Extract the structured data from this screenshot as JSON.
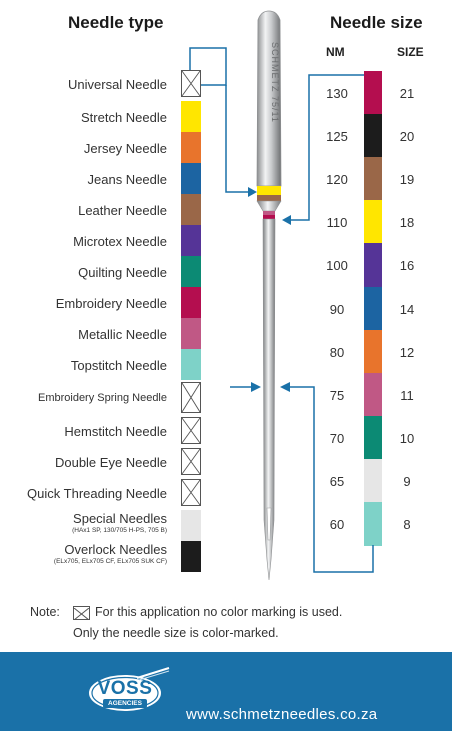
{
  "headers": {
    "needle_type": "Needle type",
    "needle_size": "Needle size",
    "nm": "NM",
    "size": "SIZE"
  },
  "needle_types": [
    {
      "label": "Universal Needle",
      "color": null
    },
    {
      "label": "Stretch Needle",
      "color": "#ffe600"
    },
    {
      "label": "Jersey Needle",
      "color": "#e8742c"
    },
    {
      "label": "Jeans Needle",
      "color": "#1c64a2"
    },
    {
      "label": "Leather Needle",
      "color": "#9a6748"
    },
    {
      "label": "Microtex Needle",
      "color": "#553497"
    },
    {
      "label": "Quilting Needle",
      "color": "#0c8a74"
    },
    {
      "label": "Embroidery Needle",
      "color": "#b40e4f"
    },
    {
      "label": "Metallic Needle",
      "color": "#c05885"
    },
    {
      "label": "Topstitch Needle",
      "color": "#7ed2c8"
    },
    {
      "label": "Embroidery Spring Needle",
      "color": null
    },
    {
      "label": "Hemstitch Needle",
      "color": null
    },
    {
      "label": "Double Eye Needle",
      "color": null
    },
    {
      "label": "Quick Threading Needle",
      "color": null
    },
    {
      "label": "Special Needles",
      "sub": "(HAx1 SP, 130/705 H-PS, 705 B)",
      "color": "#e6e6e6"
    },
    {
      "label": "Overlock Needles",
      "sub": "(ELx705, ELx705 CF, ELx705 SUK CF)",
      "color": "#1c1c1c"
    }
  ],
  "needle_sizes": [
    {
      "nm": "130",
      "size": "21",
      "color": "#b40e4f"
    },
    {
      "nm": "125",
      "size": "20",
      "color": "#1c1c1c"
    },
    {
      "nm": "120",
      "size": "19",
      "color": "#9a6748"
    },
    {
      "nm": "110",
      "size": "18",
      "color": "#ffe600"
    },
    {
      "nm": "100",
      "size": "16",
      "color": "#553497"
    },
    {
      "nm": "90",
      "size": "14",
      "color": "#1c64a2"
    },
    {
      "nm": "80",
      "size": "12",
      "color": "#e8742c"
    },
    {
      "nm": "75",
      "size": "11",
      "color": "#c05885"
    },
    {
      "nm": "70",
      "size": "10",
      "color": "#0c8a74"
    },
    {
      "nm": "65",
      "size": "9",
      "color": "#e6e6e6"
    },
    {
      "nm": "60",
      "size": "8",
      "color": "#7ed2c8"
    }
  ],
  "needle_engraving": "SCHMETZ 75/11",
  "note": {
    "prefix": "Note:",
    "line1": "For this application no color marking is used.",
    "line2": "Only the needle size is color-marked."
  },
  "footer": {
    "logo_text": "VOSS",
    "logo_sub": "AGENCIES",
    "url": "www.schmetzneedles.co.za",
    "bg_color": "#1a71a8"
  },
  "colors": {
    "arrow": "#1a71a8"
  }
}
